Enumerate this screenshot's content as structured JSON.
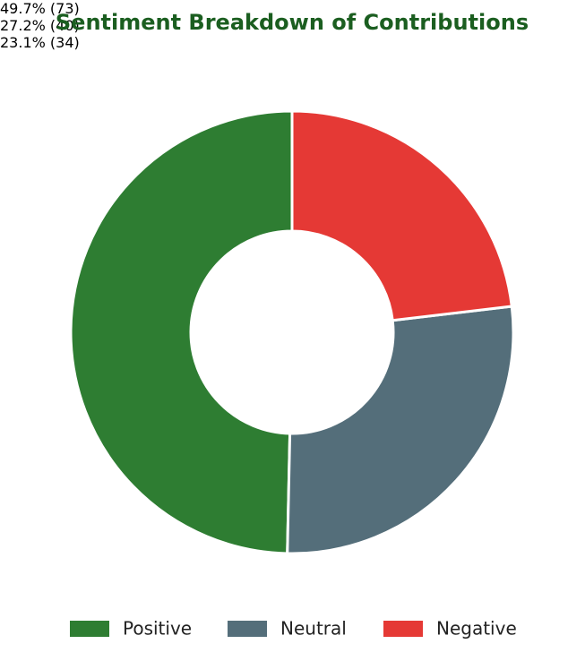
{
  "chart_data": {
    "type": "donut",
    "title": "Sentiment Breakdown of Contributions",
    "categories": [
      "Positive",
      "Neutral",
      "Negative"
    ],
    "values": [
      73,
      40,
      34
    ],
    "value_labels": [
      "49.7%\n(73)",
      "27.2%\n(40)",
      "23.1%\n(34)"
    ],
    "colors": [
      "#2e7d32",
      "#546e7a",
      "#e53935"
    ],
    "legend": "bottom"
  }
}
